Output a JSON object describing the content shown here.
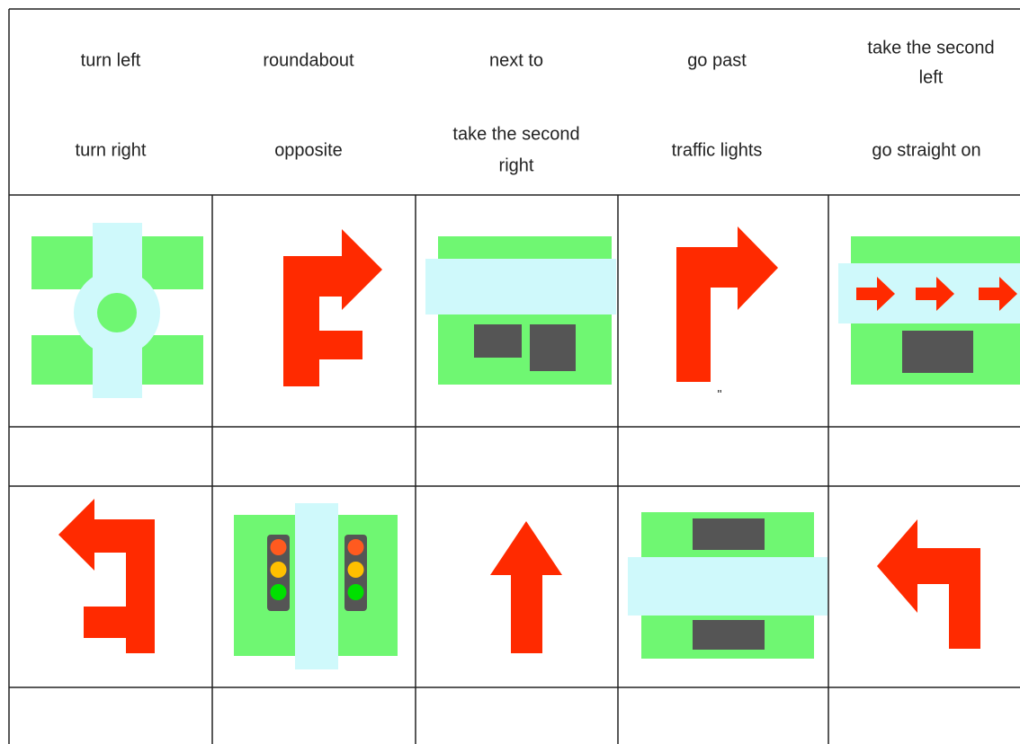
{
  "header": {
    "words": [
      [
        "turn left",
        "roundabout",
        "next to",
        "go past",
        [
          "take the second",
          "left"
        ]
      ],
      [
        "turn right",
        "opposite",
        [
          "take the second",
          "right"
        ],
        "traffic lights",
        "go straight on"
      ]
    ]
  },
  "stray_mark": "\""
}
